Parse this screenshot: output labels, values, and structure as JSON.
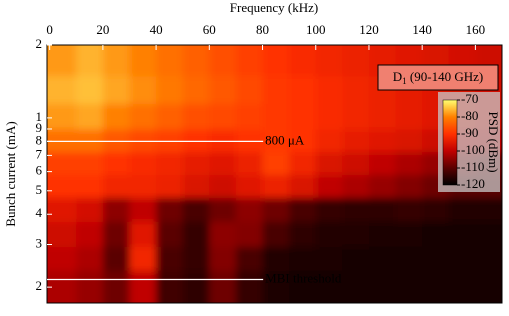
{
  "chart_data": {
    "type": "heatmap",
    "xlabel": "Frequency (kHz)",
    "ylabel": "Bunch current (mA)",
    "x": [
      5,
      15,
      25,
      35,
      45,
      55,
      65,
      75,
      85,
      95,
      105,
      115,
      125,
      135,
      145,
      155,
      165
    ],
    "y": [
      1.7,
      1.3,
      1.0,
      0.8,
      0.65,
      0.52,
      0.42,
      0.33,
      0.26,
      0.21
    ],
    "z": [
      [
        -78,
        -76,
        -78,
        -80,
        -82,
        -84,
        -86,
        -88,
        -90,
        -91,
        -92,
        -93,
        -94,
        -95,
        -96,
        -97,
        -98
      ],
      [
        -76,
        -75,
        -77,
        -79,
        -81,
        -83,
        -85,
        -87,
        -89,
        -90,
        -91,
        -92,
        -93,
        -94,
        -95,
        -96,
        -97
      ],
      [
        -78,
        -77,
        -80,
        -82,
        -84,
        -86,
        -87,
        -88,
        -89,
        -90,
        -91,
        -92,
        -93,
        -94,
        -95,
        -96,
        -97
      ],
      [
        -82,
        -82,
        -85,
        -87,
        -88,
        -90,
        -91,
        -90,
        -89,
        -90,
        -92,
        -94,
        -95,
        -96,
        -98,
        -99,
        -100
      ],
      [
        -88,
        -88,
        -90,
        -91,
        -92,
        -94,
        -95,
        -93,
        -88,
        -92,
        -96,
        -98,
        -100,
        -102,
        -104,
        -106,
        -108
      ],
      [
        -90,
        -90,
        -92,
        -92,
        -93,
        -96,
        -98,
        -95,
        -93,
        -96,
        -100,
        -102,
        -104,
        -106,
        -108,
        -110,
        -110
      ],
      [
        -95,
        -97,
        -105,
        -100,
        -108,
        -112,
        -108,
        -105,
        -108,
        -112,
        -114,
        -115,
        -115,
        -114,
        -115,
        -116,
        -116
      ],
      [
        -98,
        -100,
        -108,
        -95,
        -110,
        -114,
        -105,
        -106,
        -112,
        -115,
        -116,
        -116,
        -117,
        -117,
        -118,
        -118,
        -118
      ],
      [
        -100,
        -102,
        -110,
        -92,
        -112,
        -114,
        -106,
        -112,
        -116,
        -117,
        -117,
        -118,
        -118,
        -118,
        -118,
        -118,
        -118
      ],
      [
        -102,
        -104,
        -108,
        -100,
        -113,
        -115,
        -108,
        -114,
        -117,
        -118,
        -118,
        -118,
        -118,
        -118,
        -118,
        -118,
        -118
      ]
    ],
    "xlim": [
      -1,
      170
    ],
    "xticks": [
      0,
      20,
      40,
      60,
      80,
      100,
      120,
      140,
      160
    ],
    "ylim": [
      0.172,
      2
    ],
    "log_y": true,
    "yticks": [
      2,
      1,
      {
        "value": 0.9,
        "label": "9"
      },
      {
        "value": 0.8,
        "label": "8"
      },
      {
        "value": 0.7,
        "label": "7"
      },
      {
        "value": 0.6,
        "label": "6"
      },
      {
        "value": 0.5,
        "label": "5"
      },
      {
        "value": 0.4,
        "label": "4"
      },
      {
        "value": 0.3,
        "label": "3"
      },
      {
        "value": 0.2,
        "label": "2"
      }
    ],
    "zlim": [
      -120,
      -70
    ],
    "zticks": [
      -70,
      -80,
      -90,
      -100,
      -110,
      -120
    ],
    "colormap": [
      "#000000",
      "#5a0000",
      "#c00000",
      "#ff3000",
      "#ff8000",
      "#ffff70"
    ],
    "colorbar_label": "PSD (dBm)",
    "box_label": [
      "D",
      "1",
      " (90-140 GHz)"
    ],
    "annotations": [
      {
        "text": "800 μA",
        "x": 84,
        "y": 0.8
      },
      {
        "text": "MBI threshold",
        "x": 84,
        "y": 0.215
      }
    ]
  }
}
